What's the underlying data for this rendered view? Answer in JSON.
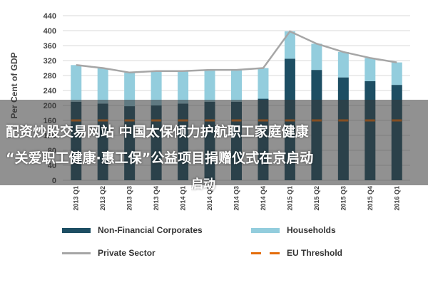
{
  "overlay": {
    "line1": "配资炒股交易网站 中国太保倾力护航职工家庭健康",
    "line2": "“关爱职工健康·惠工保”公益项目捐赠仪式在京启动",
    "line3": "启动"
  },
  "legend": {
    "non_financial": "Non-Financial Corporates",
    "households": "Households",
    "private_sector": "Private Sector",
    "eu_threshold": "EU Threshold"
  },
  "colors": {
    "non_financial": "#1d4e63",
    "households": "#93cddd",
    "private_sector": "#a6a6a6",
    "eu_threshold": "#e46c0a"
  },
  "chart_data": {
    "type": "bar",
    "stacked": true,
    "ylabel": "Per Cent of GDP",
    "ylim": [
      0,
      440
    ],
    "yticks": [
      0,
      40,
      80,
      120,
      160,
      200,
      240,
      280,
      320,
      360,
      400,
      440
    ],
    "grid": true,
    "legend_position": "bottom",
    "categories": [
      "2013 Q1",
      "2013 Q2",
      "2013 Q3",
      "2013 Q4",
      "2014 Q1",
      "2014 Q2",
      "2014 Q3",
      "2014 Q4",
      "2015 Q1",
      "2015 Q2",
      "2015 Q3",
      "2015 Q4",
      "2016 Q1"
    ],
    "series": [
      {
        "name": "Non-Financial Corporates",
        "type": "bar",
        "values": [
          210,
          205,
          198,
          200,
          205,
          210,
          210,
          218,
          325,
          295,
          275,
          265,
          255
        ]
      },
      {
        "name": "Households",
        "type": "bar",
        "values": [
          98,
          95,
          90,
          92,
          87,
          85,
          85,
          82,
          73,
          70,
          68,
          62,
          60
        ]
      },
      {
        "name": "Private Sector",
        "type": "line",
        "values": [
          308,
          300,
          288,
          292,
          292,
          295,
          295,
          300,
          398,
          365,
          343,
          327,
          315
        ]
      },
      {
        "name": "EU Threshold",
        "type": "line",
        "dashed": true,
        "values": [
          160,
          160,
          160,
          160,
          160,
          160,
          160,
          160,
          160,
          160,
          160,
          160,
          160
        ]
      }
    ]
  }
}
